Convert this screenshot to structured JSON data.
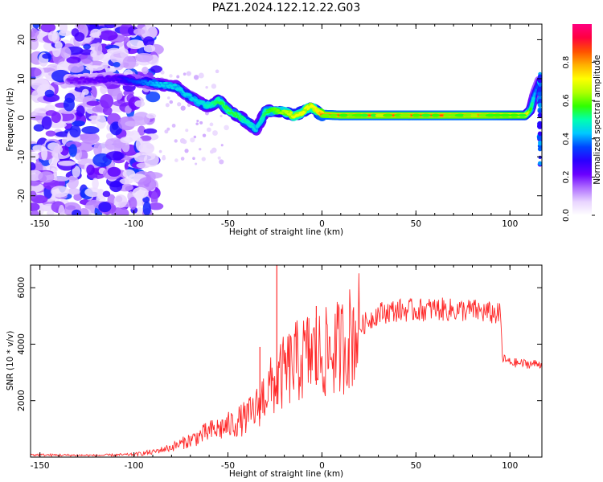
{
  "title": "PAZ1.2024.122.12.22.G03",
  "chart_data": [
    {
      "type": "heatmap",
      "xlabel": "Height of straight line (km)",
      "ylabel": "Frequency (Hz)",
      "xlim": [
        -155,
        117
      ],
      "ylim": [
        -25,
        24
      ],
      "xticks": [
        -150,
        -100,
        -50,
        0,
        50,
        100
      ],
      "yticks": [
        -20,
        -10,
        0,
        10,
        20
      ],
      "colorbar": {
        "label": "Normalized spectral amplitude",
        "range": [
          0,
          1
        ],
        "ticks": [
          "0.0",
          "0.2",
          "0.4",
          "0.6",
          "0.8"
        ],
        "colors": [
          "#ffffff",
          "#e8d4ff",
          "#b070ff",
          "#6a00ff",
          "#2a00ff",
          "#0044ff",
          "#00c8ff",
          "#00ffb0",
          "#30ff00",
          "#b0ff00",
          "#ffff00",
          "#ffb000",
          "#ff5000",
          "#ff0040",
          "#ff0080"
        ]
      },
      "ridge": {
        "points": [
          [
            -135,
            9.5
          ],
          [
            -110,
            10
          ],
          [
            -100,
            9.5
          ],
          [
            -92,
            9
          ],
          [
            -85,
            8.5
          ],
          [
            -78,
            8
          ],
          [
            -72,
            6
          ],
          [
            -66,
            4
          ],
          [
            -60,
            3
          ],
          [
            -55,
            4.5
          ],
          [
            -50,
            2
          ],
          [
            -45,
            0.5
          ],
          [
            -40,
            -1
          ],
          [
            -35,
            -3
          ],
          [
            -30,
            1.5
          ],
          [
            -25,
            2
          ],
          [
            -20,
            1.5
          ],
          [
            -15,
            0.5
          ],
          [
            -10,
            1.5
          ],
          [
            -6,
            3
          ],
          [
            -2,
            1.5
          ],
          [
            0,
            0.8
          ],
          [
            10,
            0.6
          ],
          [
            50,
            0.6
          ],
          [
            90,
            0.6
          ],
          [
            108,
            0.6
          ],
          [
            111,
            2
          ],
          [
            113,
            6
          ],
          [
            116,
            10
          ]
        ],
        "amplitude": [
          0.2,
          0.25,
          0.35,
          0.4,
          0.45,
          0.45,
          0.45,
          0.45,
          0.5,
          0.55,
          0.55,
          0.55,
          0.5,
          0.45,
          0.55,
          0.6,
          0.65,
          0.7,
          0.7,
          0.7,
          0.75,
          0.85,
          0.85,
          0.85,
          0.85,
          0.8,
          0.55,
          0.4,
          0.3
        ],
        "noise_x_range": [
          -155,
          -88
        ]
      }
    },
    {
      "type": "line",
      "xlabel": "Height of straight line (km)",
      "ylabel": "SNR (10 * v/v)",
      "xlim": [
        -155,
        117
      ],
      "ylim": [
        0,
        6800
      ],
      "xticks": [
        -150,
        -100,
        -50,
        0,
        50,
        100
      ],
      "yticks": [
        2000,
        4000,
        6000
      ],
      "color": "#ff2a2a",
      "envelope": {
        "x": [
          -155,
          -140,
          -120,
          -100,
          -90,
          -80,
          -70,
          -60,
          -50,
          -40,
          -35,
          -30,
          -25,
          -20,
          -15,
          -10,
          -5,
          0,
          10,
          20,
          30,
          40,
          50,
          60,
          70,
          80,
          90,
          95,
          96,
          100,
          110,
          117
        ],
        "y": [
          80,
          70,
          60,
          90,
          180,
          350,
          600,
          900,
          1100,
          1400,
          1700,
          2300,
          2600,
          3000,
          3300,
          3500,
          3700,
          3600,
          3900,
          4600,
          5100,
          5200,
          5200,
          5250,
          5200,
          5200,
          5100,
          5050,
          3500,
          3350,
          3300,
          3300
        ]
      },
      "spikes": [
        {
          "x": -24,
          "y": 6800
        },
        {
          "x": -33,
          "y": 3900
        },
        {
          "x": -3,
          "y": 5350
        }
      ]
    }
  ]
}
